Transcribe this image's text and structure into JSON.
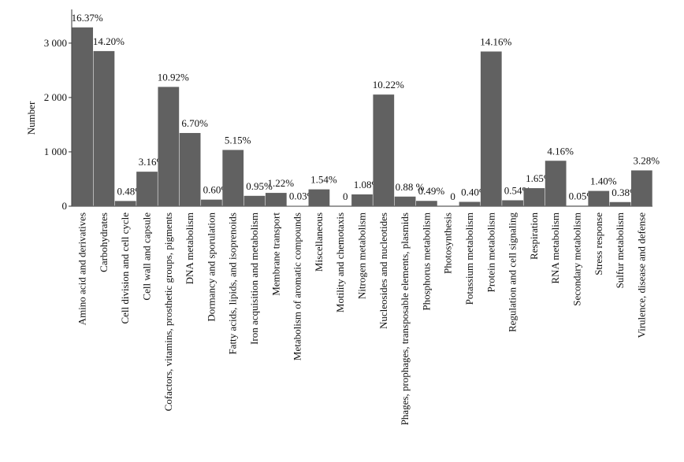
{
  "chart_data": {
    "type": "bar",
    "y_label": "Number",
    "categories": [
      "Amino acid and derivatives",
      "Carbohydrates",
      "Cell division and cell cycle",
      "Cell wall and capsule",
      "Cofactors, vitamins, prosthetic groups, pigments",
      "DNA metabolism",
      "Dormancy and sporulation",
      "Fatty acids, lipids, and isoprenoids",
      "Iron acquisition and metabolism",
      "Membrane transport",
      "Metabolism of aromatic compounds",
      "Miscellaneous",
      "Motility and chemotaxis",
      "Nitrogen metabolism",
      "Nucleosides and nucleotides",
      "Phages, prophages, transposable elements, plasmids",
      "Phosphorus metabolism",
      "Photosynthesis",
      "Potassium metabolism",
      "Protein metabolism",
      "Regulation and cell signaling",
      "Respiration",
      "RNA metabolism",
      "Secondary metabolism",
      "Stress response",
      "Sulfur metabolism",
      "Virulence, disease and defense"
    ],
    "values": [
      3290,
      2854,
      96,
      635,
      2195,
      1347,
      121,
      1035,
      191,
      245,
      6,
      310,
      0,
      217,
      2054,
      177,
      98,
      0,
      80,
      2846,
      109,
      332,
      836,
      10,
      281,
      76,
      659
    ],
    "percent_labels": [
      "16.37%",
      "14.20%",
      "0.48%",
      "3.16%",
      "10.92%",
      "6.70%",
      "0.60%",
      "5.15%",
      "0.95%",
      "1.22%",
      "0.03%",
      "1.54%",
      "0",
      "1.08%",
      "10.22%",
      "0.88 %",
      "0.49%",
      "0",
      "0.40%",
      "14.16%",
      "0.54%",
      "1.65%",
      "4.16%",
      "0.05%",
      "1.40%",
      "0.38%",
      "3.28%"
    ],
    "color": "#616161",
    "ylim": [
      0,
      3620
    ],
    "yticks": [
      {
        "value": 0,
        "label": "0"
      },
      {
        "value": 1000,
        "label": "1 000"
      },
      {
        "value": 2000,
        "label": "2 000"
      },
      {
        "value": 3000,
        "label": "3 000"
      }
    ]
  }
}
